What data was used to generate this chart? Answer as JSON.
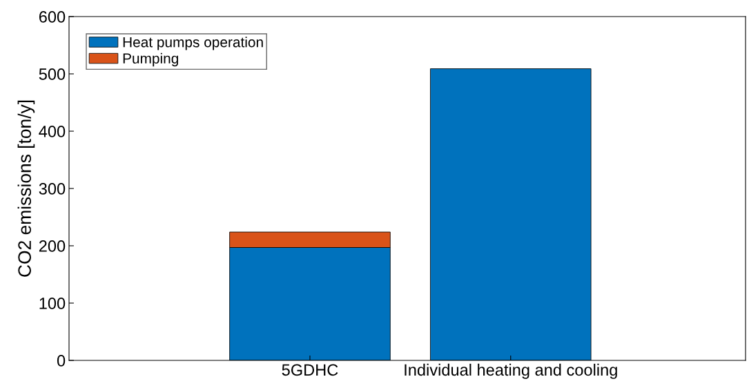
{
  "chart_data": {
    "type": "bar",
    "stacked": true,
    "ylabel": "CO2 emissions [ton/y]",
    "categories": [
      "5GDHC",
      "Individual heating and cooling"
    ],
    "series": [
      {
        "name": "Heat pumps operation",
        "color": "#0072bd",
        "values": [
          197,
          509
        ]
      },
      {
        "name": "Pumping",
        "color": "#d95319",
        "values": [
          27,
          null
        ]
      }
    ],
    "ylim": [
      0,
      600
    ],
    "yticks": [
      0,
      100,
      200,
      300,
      400,
      500,
      600
    ],
    "grid": false,
    "legend": "top left"
  }
}
